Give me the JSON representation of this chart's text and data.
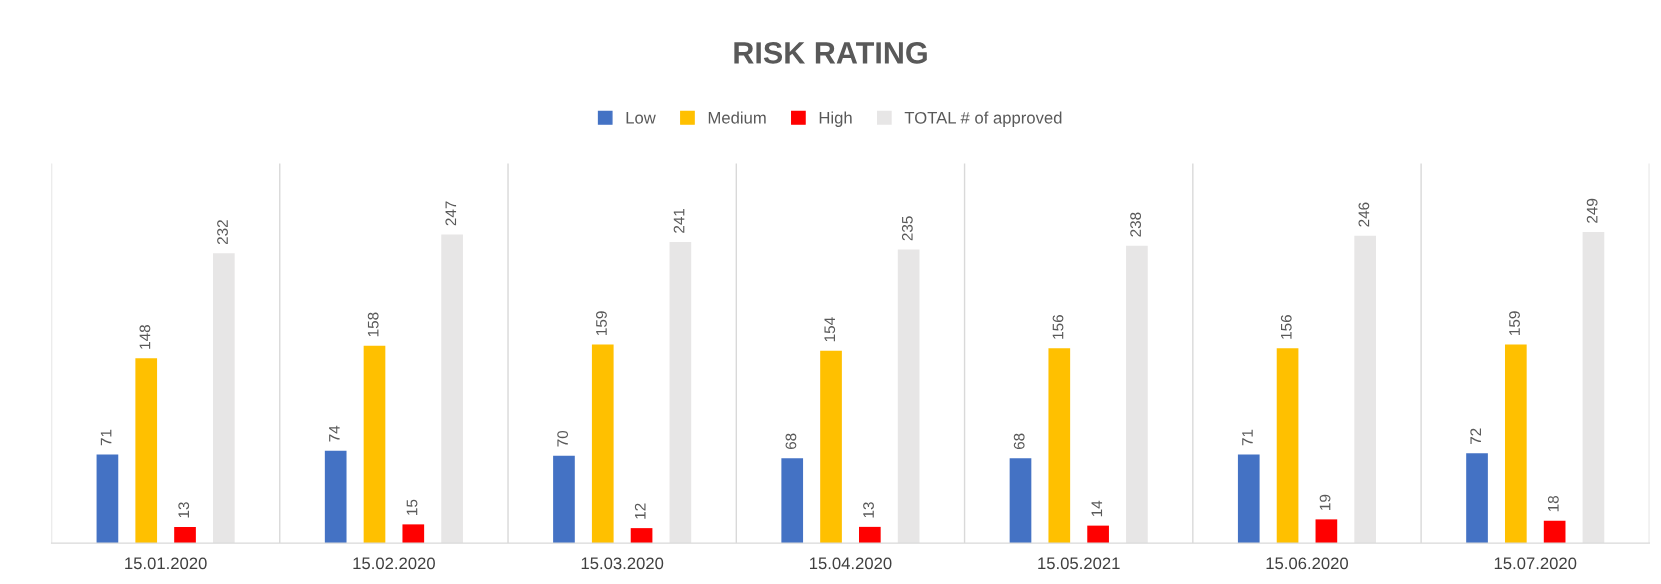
{
  "chart_data": {
    "type": "bar",
    "title": "RISK RATING",
    "categories": [
      "15.01.2020",
      "15.02.2020",
      "15.03.2020",
      "15.04.2020",
      "15.05.2021",
      "15.06.2020",
      "15.07.2020"
    ],
    "series": [
      {
        "name": "Low",
        "color": "#4472c4",
        "values": [
          71,
          74,
          70,
          68,
          68,
          71,
          72
        ]
      },
      {
        "name": "Medium",
        "color": "#ffc000",
        "values": [
          148,
          158,
          159,
          154,
          156,
          156,
          159
        ]
      },
      {
        "name": "High",
        "color": "#ff0000",
        "values": [
          13,
          15,
          12,
          13,
          14,
          19,
          18
        ]
      },
      {
        "name": "TOTAL # of approved",
        "color": "#e7e6e6",
        "values": [
          232,
          247,
          241,
          235,
          238,
          246,
          249
        ]
      }
    ],
    "data_labels": true,
    "grid": "x",
    "legend": "top"
  }
}
